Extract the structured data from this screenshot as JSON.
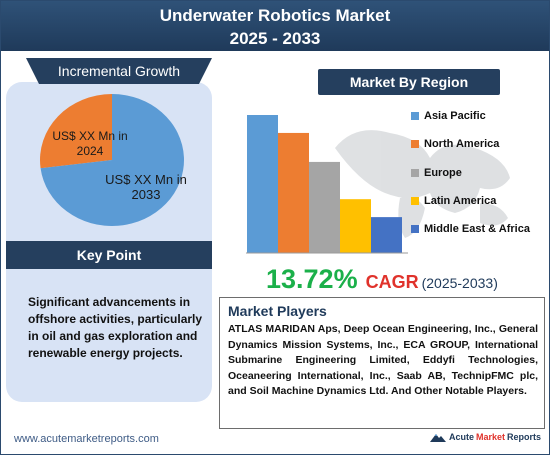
{
  "header": {
    "title_line1": "Underwater Robotics Market",
    "title_line2": "2025 - 2033"
  },
  "incremental": {
    "banner": "Incremental Growth",
    "label_2024_line1": "US$ XX Mn in",
    "label_2024_line2": "2024",
    "label_2033_line1": "US$ XX Mn in",
    "label_2033_line2": "2033"
  },
  "key_point": {
    "banner": "Key Point",
    "text": "Significant advancements in offshore activities, particularly in oil and gas exploration and renewable energy projects."
  },
  "region": {
    "banner": "Market By Region"
  },
  "chart_data": {
    "type": "bar",
    "categories": [
      "Asia Pacific",
      "North America",
      "Europe",
      "Latin America",
      "Middle East & Africa"
    ],
    "values": [
      100,
      87,
      66,
      39,
      26
    ],
    "colors": [
      "#5b9bd5",
      "#ed7d31",
      "#a5a5a5",
      "#ffc000",
      "#4472c4"
    ],
    "title": "",
    "xlabel": "",
    "ylabel": "",
    "ylim": [
      0,
      100
    ],
    "grid": false,
    "legend": "right"
  },
  "pie_data": {
    "type": "pie",
    "slices": [
      {
        "label": "2024",
        "value": 27,
        "color": "#ed7d31"
      },
      {
        "label": "2033",
        "value": 73,
        "color": "#5b9bd5"
      }
    ]
  },
  "cagr": {
    "value": "13.72%",
    "label": "CAGR",
    "period": "(2025-2033)"
  },
  "players": {
    "title": "Market Players",
    "text": "ATLAS MARIDAN Aps, Deep Ocean Engineering, Inc., General Dynamics Mission Systems, Inc., ECA GROUP, International Submarine Engineering Limited, Eddyfi Technologies, Oceaneering International, Inc., Saab AB, TechnipFMC plc, and Soil Machine Dynamics Ltd. And Other Notable Players."
  },
  "footer": {
    "url": "www.acutemarketreports.com",
    "logo_part1": "Acute",
    "logo_part2": "Market",
    "logo_part3": "Reports",
    "logo_icon": "mountain-logo-icon"
  }
}
